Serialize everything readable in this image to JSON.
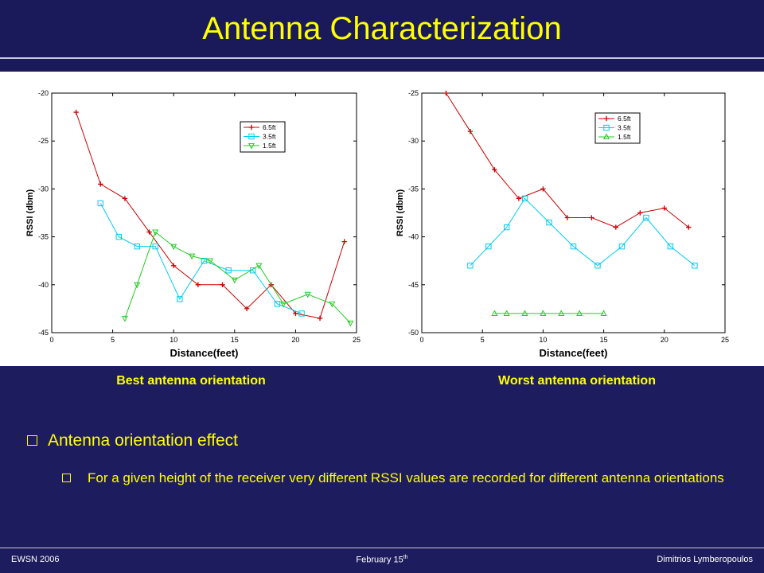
{
  "slide": {
    "title": "Antenna Characterization",
    "caption_left": "Best antenna orientation",
    "caption_right": "Worst antenna orientation",
    "bullet1": "Antenna orientation effect",
    "bullet2": "For a given height of the receiver very different RSSI values are recorded for different antenna orientations"
  },
  "footer": {
    "left": "EWSN 2006",
    "center": "February 15",
    "center_sup": "th",
    "right": "Dimitrios Lymberopoulos"
  },
  "colors": {
    "background": "#1c1c5e",
    "title": "#ffff00",
    "series_6_5": "#cc0000",
    "series_3_5": "#00ccee",
    "series_1_5": "#22cc22"
  },
  "chart_data": [
    {
      "type": "line",
      "xlabel": "Distance(feet)",
      "ylabel": "RSSI (dbm)",
      "xlim": [
        0,
        25
      ],
      "ylim": [
        -45,
        -20
      ],
      "xticks": [
        0,
        5,
        10,
        15,
        20,
        25
      ],
      "yticks": [
        -20,
        -25,
        -30,
        -35,
        -40,
        -45
      ],
      "legend_position": "top-right",
      "series": [
        {
          "name": "6.5ft",
          "marker": "plus",
          "color": "#cc0000",
          "x": [
            2,
            4,
            6,
            8,
            10,
            12,
            14,
            16,
            18,
            20,
            22,
            24
          ],
          "y": [
            -22,
            -29.5,
            -31,
            -34.5,
            -38,
            -40,
            -40,
            -42.5,
            -40,
            -43,
            -43.5,
            -35.5
          ]
        },
        {
          "name": "3.5ft",
          "marker": "square",
          "color": "#00ccee",
          "x": [
            4,
            5.5,
            7,
            8.5,
            10.5,
            12.5,
            14.5,
            16.5,
            18.5,
            20.5
          ],
          "y": [
            -31.5,
            -35,
            -36,
            -36,
            -41.5,
            -37.5,
            -38.5,
            -38.5,
            -42,
            -43
          ]
        },
        {
          "name": "1.5ft",
          "marker": "triangle-down",
          "color": "#22cc22",
          "x": [
            6,
            7,
            8.5,
            10,
            11.5,
            13,
            15,
            17,
            19,
            21,
            23,
            24.5
          ],
          "y": [
            -43.5,
            -40,
            -34.5,
            -36,
            -37,
            -37.5,
            -39.5,
            -38,
            -42,
            -41,
            -42,
            -44
          ]
        }
      ]
    },
    {
      "type": "line",
      "xlabel": "Distance(feet)",
      "ylabel": "RSSI (dbm)",
      "xlim": [
        0,
        25
      ],
      "ylim": [
        -50,
        -25
      ],
      "xticks": [
        0,
        5,
        10,
        15,
        20,
        25
      ],
      "yticks": [
        -25,
        -30,
        -35,
        -40,
        -45,
        -50
      ],
      "legend_position": "top-right",
      "series": [
        {
          "name": "6.5ft",
          "marker": "plus",
          "color": "#cc0000",
          "x": [
            2,
            4,
            6,
            8,
            10,
            12,
            14,
            16,
            18,
            20,
            22
          ],
          "y": [
            -25,
            -29,
            -33,
            -36,
            -35,
            -38,
            -38,
            -39,
            -37.5,
            -37,
            -39
          ]
        },
        {
          "name": "3.5ft",
          "marker": "square",
          "color": "#00ccee",
          "x": [
            4,
            5.5,
            7,
            8.5,
            10.5,
            12.5,
            14.5,
            16.5,
            18.5,
            20.5,
            22.5
          ],
          "y": [
            -43,
            -41,
            -39,
            -36,
            -38.5,
            -41,
            -43,
            -41,
            -38,
            -41,
            -43
          ]
        },
        {
          "name": "1.5ft",
          "marker": "triangle-up",
          "color": "#22cc22",
          "x": [
            6,
            7,
            8.5,
            10,
            11.5,
            13,
            15
          ],
          "y": [
            -48,
            -48,
            -48,
            -48,
            -48,
            -48,
            -48
          ]
        }
      ]
    }
  ]
}
